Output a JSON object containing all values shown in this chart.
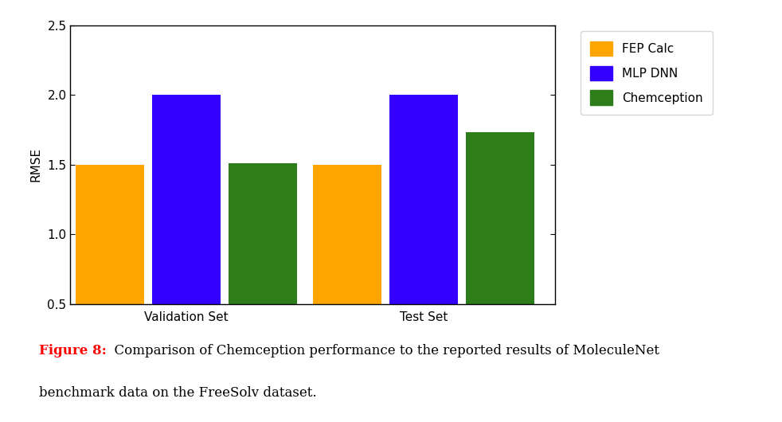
{
  "groups": [
    "Validation Set",
    "Test Set"
  ],
  "series": [
    {
      "label": "FEP Calc",
      "color": "#FFA500",
      "values": [
        1.5,
        1.5
      ]
    },
    {
      "label": "MLP DNN",
      "color": "#3300FF",
      "values": [
        2.0,
        2.0
      ]
    },
    {
      "label": "Chemception",
      "color": "#2D7D1A",
      "values": [
        1.51,
        1.73
      ]
    }
  ],
  "ylabel": "RMSE",
  "ylim": [
    0.5,
    2.5
  ],
  "yticks": [
    0.5,
    1.0,
    1.5,
    2.0,
    2.5
  ],
  "ytick_labels": [
    "0.5",
    "1.0",
    "1.5",
    "2.0",
    "2.5"
  ],
  "bar_width": 0.13,
  "figure_caption_bold": "Figure 8:",
  "figure_caption_rest": "  Comparison of Chemception performance to the reported results of MoleculeNet",
  "figure_caption_line2": "benchmark data on the FreeSolv dataset.",
  "caption_color_bold": "#FF0000",
  "caption_color_normal": "#000000",
  "tick_label_fontsize": 11,
  "axis_label_fontsize": 11,
  "legend_fontsize": 11,
  "caption_fontsize": 12
}
